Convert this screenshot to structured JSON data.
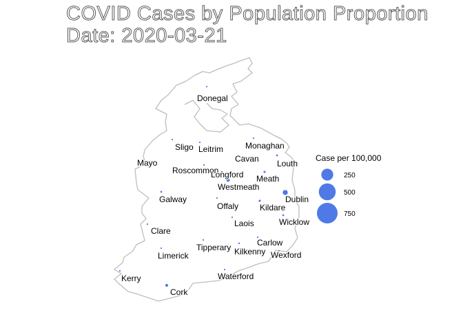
{
  "title": "COVID Cases by Population Proportion",
  "subtitle": "Date: 2020-03-21",
  "colors": {
    "bubble": "#4f79e6",
    "outline": "#bdbdbd"
  },
  "counties": [
    {
      "name": "Donegal",
      "value": 2
    },
    {
      "name": "Sligo",
      "value": 3
    },
    {
      "name": "Leitrim",
      "value": 2
    },
    {
      "name": "Monaghan",
      "value": 3
    },
    {
      "name": "Mayo",
      "value": 2
    },
    {
      "name": "Cavan",
      "value": 4
    },
    {
      "name": "Louth",
      "value": 6
    },
    {
      "name": "Roscommon",
      "value": 2
    },
    {
      "name": "Longford",
      "value": 5
    },
    {
      "name": "Meath",
      "value": 8
    },
    {
      "name": "Westmeath",
      "value": 20
    },
    {
      "name": "Galway",
      "value": 6
    },
    {
      "name": "Offaly",
      "value": 3
    },
    {
      "name": "Dublin",
      "value": 45
    },
    {
      "name": "Kildare",
      "value": 8
    },
    {
      "name": "Laois",
      "value": 3
    },
    {
      "name": "Wicklow",
      "value": 6
    },
    {
      "name": "Clare",
      "value": 2
    },
    {
      "name": "Carlow",
      "value": 3
    },
    {
      "name": "Tipperary",
      "value": 4
    },
    {
      "name": "Kilkenny",
      "value": 5
    },
    {
      "name": "Limerick",
      "value": 3
    },
    {
      "name": "Wexford",
      "value": 2
    },
    {
      "name": "Kerry",
      "value": 2
    },
    {
      "name": "Waterford",
      "value": 3
    },
    {
      "name": "Cork",
      "value": 14
    }
  ],
  "legend": {
    "title": "Case per 100,000",
    "entries": [
      {
        "label": "250",
        "value": 250
      },
      {
        "label": "500",
        "value": 500
      },
      {
        "label": "750",
        "value": 750
      }
    ]
  }
}
